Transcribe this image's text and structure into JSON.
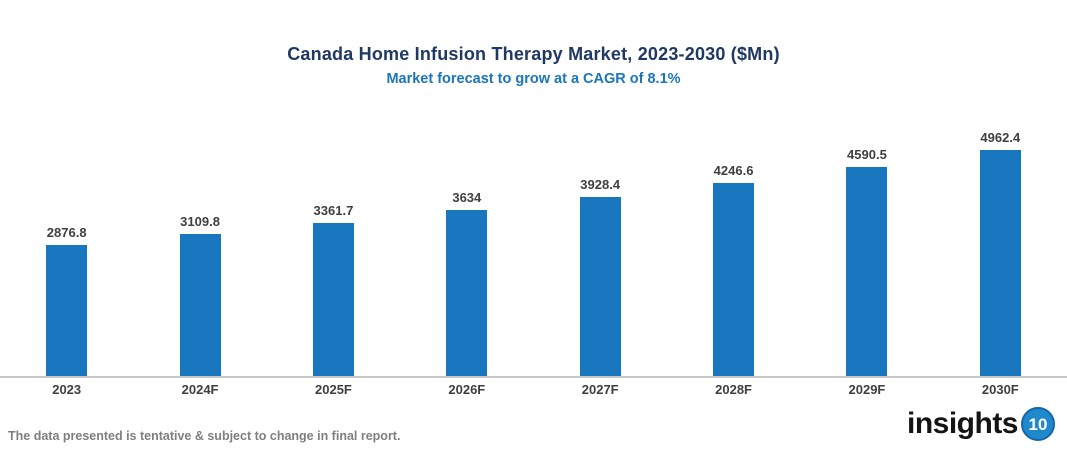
{
  "chart_data": {
    "type": "bar",
    "title": "Canada Home Infusion Therapy Market, 2023-2030 ($Mn)",
    "subtitle": "Market forecast to grow at a CAGR of 8.1%",
    "categories": [
      "2023",
      "2024F",
      "2025F",
      "2026F",
      "2027F",
      "2028F",
      "2029F",
      "2030F"
    ],
    "values": [
      2876.8,
      3109.8,
      3361.7,
      3634,
      3928.4,
      4246.6,
      4590.5,
      4962.4
    ],
    "value_labels": [
      "2876.8",
      "3109.8",
      "3361.7",
      "3634",
      "3928.4",
      "4246.6",
      "4590.5",
      "4962.4"
    ],
    "ylim": [
      0,
      4962.4
    ],
    "grid": false,
    "legend": "none",
    "data_labels_position": "above-bar",
    "bar_color": "#1877BE",
    "title_color": "#1F3864",
    "subtitle_color": "#1B75BC",
    "label_color": "#3F3F3F",
    "axis_line_color": "#C6C6C6"
  },
  "footer": {
    "disclaimer": "The data presented is tentative & subject to change in final report.",
    "logo": {
      "text": "insights",
      "badge": "10",
      "badge_color": "#2089CC"
    }
  }
}
